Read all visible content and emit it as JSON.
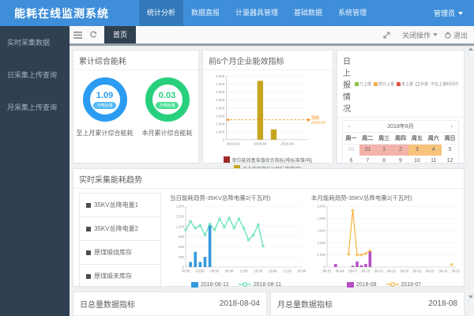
{
  "navbar": {
    "brand": "能耗在线监测系统",
    "menu": [
      {
        "label": "统计分析",
        "active": true
      },
      {
        "label": "数据直报"
      },
      {
        "label": "计量器具管理"
      },
      {
        "label": "基础数据"
      },
      {
        "label": "系统管理"
      }
    ],
    "user": {
      "name": "管理员"
    }
  },
  "sidebar": {
    "items": [
      {
        "label": "实时采集数据"
      },
      {
        "label": "日采集上传查询"
      },
      {
        "label": "月采集上传查询"
      }
    ]
  },
  "topbar": {
    "tab": "首页",
    "close_ops": "关闭操作",
    "logout": "退出"
  },
  "cumulative_card": {
    "title": "累计综合能耗",
    "gauges": [
      {
        "value": "1.09",
        "unit": "万吨标煤",
        "label": "至上月累计综合能耗",
        "color": "#2b9cf2",
        "badge": "#55b9f3"
      },
      {
        "value": "0.03",
        "unit": "万吨标煤",
        "label": "本月累计综合能耗",
        "color": "#28d07e",
        "badge": "#4ade94"
      }
    ]
  },
  "report_card": {
    "title": "日上报情况",
    "legend": [
      {
        "label": "已上报",
        "color": "#8bc34a",
        "type": "fill"
      },
      {
        "label": "部分上报",
        "color": "#f0ad4e",
        "type": "fill"
      },
      {
        "label": "未上报",
        "color": "#e2574c",
        "type": "fill"
      },
      {
        "label": "补报",
        "color": "#ffffff",
        "type": "outline"
      },
      {
        "label": "不在上报时间内",
        "type": "none"
      }
    ],
    "calendar": {
      "prev": "‹",
      "next": "›",
      "month": "2018年8月",
      "weekdays": [
        "周一",
        "周二",
        "周三",
        "周四",
        "周五",
        "周六",
        "周日"
      ],
      "cells": [
        {
          "d": "30",
          "state": "out"
        },
        {
          "d": "31",
          "state": "pink"
        },
        {
          "d": "1",
          "state": "pink"
        },
        {
          "d": "2",
          "state": "pink"
        },
        {
          "d": "3",
          "state": "orange"
        },
        {
          "d": "4",
          "state": "orange"
        },
        {
          "d": "5"
        },
        {
          "d": "6"
        },
        {
          "d": "7"
        },
        {
          "d": "8"
        },
        {
          "d": "9"
        },
        {
          "d": "10"
        },
        {
          "d": "11"
        },
        {
          "d": "12"
        },
        {
          "d": "13"
        },
        {
          "d": "14"
        },
        {
          "d": "15"
        },
        {
          "d": "16"
        },
        {
          "d": "17"
        },
        {
          "d": "18"
        },
        {
          "d": "19"
        },
        {
          "d": "20"
        },
        {
          "d": "21"
        },
        {
          "d": "22"
        },
        {
          "d": "23"
        },
        {
          "d": "24"
        },
        {
          "d": "25"
        },
        {
          "d": "26"
        },
        {
          "d": "27"
        },
        {
          "d": "28"
        },
        {
          "d": "29"
        },
        {
          "d": "30"
        },
        {
          "d": "31"
        },
        {
          "d": "1",
          "state": "out"
        },
        {
          "d": "2",
          "state": "out"
        },
        {
          "d": "3",
          "state": "out"
        },
        {
          "d": "4",
          "state": "out"
        },
        {
          "d": "5",
          "state": "out"
        },
        {
          "d": "6",
          "state": "out"
        },
        {
          "d": "7",
          "state": "out"
        },
        {
          "d": "8",
          "state": "out"
        },
        {
          "d": "9",
          "state": "out"
        }
      ]
    }
  },
  "realtime_card": {
    "title": "实时采集能耗趋势",
    "items": [
      {
        "label": "35KV总降电量1"
      },
      {
        "label": "35KV总降电量2"
      },
      {
        "label": "原煤煅烧库存"
      },
      {
        "label": "原煤煅末库存"
      }
    ]
  },
  "bottom_cards": [
    {
      "title": "日总量数据指标",
      "date": "2018-08-04"
    },
    {
      "title": "月总量数据指标",
      "date": "2018-08"
    }
  ],
  "chart_data": [
    {
      "type": "bar",
      "title": "前6个月企业能效指标",
      "x": [
        "2018-02",
        "2018-03",
        "2018-04",
        "2018-05",
        "2018-06",
        "2018-07"
      ],
      "x_tick_index": [
        0,
        2,
        4
      ],
      "x_tick_labels": [
        "2018-02",
        "2018-04",
        "2018-06"
      ],
      "ylim": [
        0,
        8000
      ],
      "ytick": 1000,
      "series": [
        {
          "name": "单位能效基准值综合指标(吨标准煤/吨)",
          "color": "#9d2b28",
          "values": [
            0,
            0,
            0,
            0,
            0,
            0
          ]
        },
        {
          "name": "企业能效指标2(吨标准煤/吨)",
          "color": "#c8a41f",
          "values": [
            0,
            0,
            7400,
            1300,
            0,
            0
          ]
        }
      ],
      "limit": {
        "value": 2500,
        "label": "限额:",
        "value_label": "2500.00",
        "color": "#ef8f1c"
      }
    },
    {
      "type": "combo",
      "title": "当日能耗趋势-35KV总降电量2(千瓦时)",
      "ylim": [
        0,
        1800
      ],
      "ytick": 300,
      "xdomain": [
        0,
        24
      ],
      "xticks": [
        {
          "pos": 0,
          "label": "00:00"
        },
        {
          "pos": 3,
          "label": "03:00"
        },
        {
          "pos": 6,
          "label": "06:00"
        },
        {
          "pos": 9,
          "label": "09:00"
        },
        {
          "pos": 12,
          "label": "12:00"
        },
        {
          "pos": 15,
          "label": "15:00"
        },
        {
          "pos": 18,
          "label": "18:00"
        },
        {
          "pos": 21,
          "label": "21:00"
        },
        {
          "pos": 24,
          "label": "00:00"
        }
      ],
      "bars": {
        "name": "2018-08-12",
        "color": "#3398dc",
        "points": [
          [
            1,
            150
          ],
          [
            2,
            450
          ],
          [
            3,
            150
          ],
          [
            4,
            300
          ],
          [
            5,
            1250
          ]
        ]
      },
      "line": {
        "name": "2018-08-11",
        "color": "#3bdb9e",
        "points": [
          [
            0,
            1100
          ],
          [
            1,
            1350
          ],
          [
            2,
            1150
          ],
          [
            3,
            1230
          ],
          [
            4,
            950
          ],
          [
            5,
            1270
          ],
          [
            6,
            1100
          ],
          [
            7,
            1430
          ],
          [
            8,
            1180
          ],
          [
            9,
            1450
          ],
          [
            10,
            1150
          ],
          [
            11,
            1430
          ],
          [
            12,
            1150
          ],
          [
            13,
            800
          ],
          [
            14,
            950
          ],
          [
            15,
            1250
          ],
          [
            16,
            620
          ]
        ]
      }
    },
    {
      "type": "combo",
      "title": "本月能耗趋势-35KV总降电量2(千瓦时)",
      "ylim": [
        0,
        5000
      ],
      "ytick": 1000,
      "xdomain": [
        1,
        31
      ],
      "xticks": [
        {
          "pos": 1,
          "label": "08-01"
        },
        {
          "pos": 4,
          "label": "08-04"
        },
        {
          "pos": 7,
          "label": "08-07"
        },
        {
          "pos": 10,
          "label": "08-10"
        },
        {
          "pos": 13,
          "label": "08-13"
        },
        {
          "pos": 16,
          "label": "08-16"
        },
        {
          "pos": 19,
          "label": "08-19"
        },
        {
          "pos": 22,
          "label": "08-22"
        },
        {
          "pos": 25,
          "label": "08-25"
        },
        {
          "pos": 28,
          "label": "08-28"
        },
        {
          "pos": 31,
          "label": "08-31"
        }
      ],
      "bars": {
        "name": "2018-08",
        "color": "#b44fc4",
        "points": [
          [
            3,
            250
          ],
          [
            7,
            100
          ],
          [
            8,
            450
          ],
          [
            9,
            150
          ],
          [
            10,
            250
          ],
          [
            11,
            1300
          ]
        ]
      },
      "line": {
        "name": "2018-07",
        "color": "#f5a61d",
        "points": [
          [
            6,
            1050
          ],
          [
            7,
            4650
          ],
          [
            8,
            1000
          ],
          [
            9,
            1000
          ],
          [
            10,
            1100
          ],
          [
            11,
            1350
          ]
        ],
        "isolated": [
          [
            30,
            200
          ]
        ]
      }
    }
  ]
}
